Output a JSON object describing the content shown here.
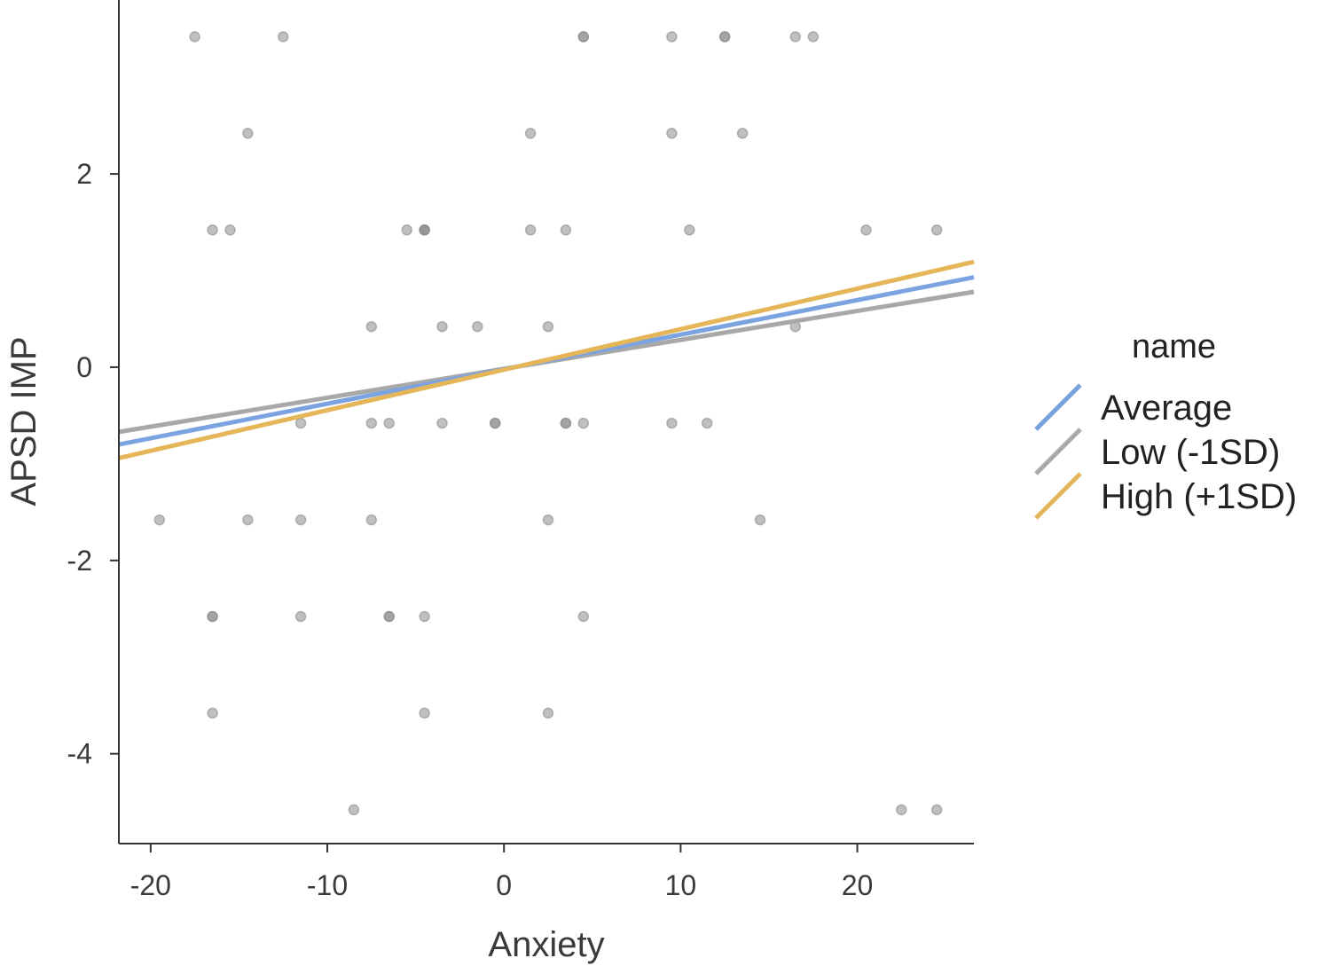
{
  "chart_data": {
    "type": "scatter",
    "xlabel": "Anxiety",
    "ylabel": "APSD IMP",
    "xlim": [
      -21.8,
      26.6
    ],
    "ylim": [
      -4.93,
      3.8
    ],
    "x_ticks": [
      -20,
      -10,
      0,
      10,
      20
    ],
    "y_ticks": [
      -4,
      -2,
      0,
      2
    ],
    "grid": false,
    "legend": {
      "title": "name",
      "position": "right",
      "entries": [
        {
          "name": "Average",
          "color": "#7ba3e0"
        },
        {
          "name": "Low (-1SD)",
          "color": "#a8a8a8"
        },
        {
          "name": "High (+1SD)",
          "color": "#e5b658"
        }
      ]
    },
    "points_color": "#8c8c8c",
    "points": [
      {
        "x": -17.5,
        "y": 3.42
      },
      {
        "x": -12.5,
        "y": 3.42
      },
      {
        "x": 4.5,
        "y": 3.42
      },
      {
        "x": 4.5,
        "y": 3.42
      },
      {
        "x": 9.5,
        "y": 3.42
      },
      {
        "x": 12.5,
        "y": 3.42
      },
      {
        "x": 12.5,
        "y": 3.42
      },
      {
        "x": 16.5,
        "y": 3.42
      },
      {
        "x": 17.5,
        "y": 3.42
      },
      {
        "x": -14.5,
        "y": 2.42
      },
      {
        "x": 1.5,
        "y": 2.42
      },
      {
        "x": 9.5,
        "y": 2.42
      },
      {
        "x": 13.5,
        "y": 2.42
      },
      {
        "x": -16.5,
        "y": 1.42
      },
      {
        "x": -15.5,
        "y": 1.42
      },
      {
        "x": -5.5,
        "y": 1.42
      },
      {
        "x": -4.5,
        "y": 1.42
      },
      {
        "x": -4.5,
        "y": 1.42
      },
      {
        "x": -4.5,
        "y": 1.42
      },
      {
        "x": 1.5,
        "y": 1.42
      },
      {
        "x": 3.5,
        "y": 1.42
      },
      {
        "x": 10.5,
        "y": 1.42
      },
      {
        "x": 20.5,
        "y": 1.42
      },
      {
        "x": 24.5,
        "y": 1.42
      },
      {
        "x": -7.5,
        "y": 0.42
      },
      {
        "x": -3.5,
        "y": 0.42
      },
      {
        "x": -1.5,
        "y": 0.42
      },
      {
        "x": 2.5,
        "y": 0.42
      },
      {
        "x": 16.5,
        "y": 0.42
      },
      {
        "x": -11.5,
        "y": -0.58
      },
      {
        "x": -7.5,
        "y": -0.58
      },
      {
        "x": -6.5,
        "y": -0.58
      },
      {
        "x": -3.5,
        "y": -0.58
      },
      {
        "x": -0.5,
        "y": -0.58
      },
      {
        "x": -0.5,
        "y": -0.58
      },
      {
        "x": 3.5,
        "y": -0.58
      },
      {
        "x": 3.5,
        "y": -0.58
      },
      {
        "x": 4.5,
        "y": -0.58
      },
      {
        "x": 9.5,
        "y": -0.58
      },
      {
        "x": 11.5,
        "y": -0.58
      },
      {
        "x": -19.5,
        "y": -1.58
      },
      {
        "x": -14.5,
        "y": -1.58
      },
      {
        "x": -11.5,
        "y": -1.58
      },
      {
        "x": -7.5,
        "y": -1.58
      },
      {
        "x": 2.5,
        "y": -1.58
      },
      {
        "x": 14.5,
        "y": -1.58
      },
      {
        "x": -16.5,
        "y": -2.58
      },
      {
        "x": -16.5,
        "y": -2.58
      },
      {
        "x": -11.5,
        "y": -2.58
      },
      {
        "x": -6.5,
        "y": -2.58
      },
      {
        "x": -6.5,
        "y": -2.58
      },
      {
        "x": -4.5,
        "y": -2.58
      },
      {
        "x": 4.5,
        "y": -2.58
      },
      {
        "x": -16.5,
        "y": -3.58
      },
      {
        "x": -4.5,
        "y": -3.58
      },
      {
        "x": 2.5,
        "y": -3.58
      },
      {
        "x": -8.5,
        "y": -4.58
      },
      {
        "x": 22.5,
        "y": -4.58
      },
      {
        "x": 24.5,
        "y": -4.58
      }
    ],
    "series": [
      {
        "name": "Low (-1SD)",
        "type": "line",
        "color": "#a8a8a8",
        "x": [
          -21.8,
          26.6
        ],
        "y": [
          -0.67,
          0.78
        ]
      },
      {
        "name": "Average",
        "type": "line",
        "color": "#7ba3e0",
        "x": [
          -21.8,
          26.6
        ],
        "y": [
          -0.8,
          0.93
        ]
      },
      {
        "name": "High (+1SD)",
        "type": "line",
        "color": "#e5b658",
        "x": [
          -21.8,
          26.6
        ],
        "y": [
          -0.94,
          1.09
        ]
      }
    ]
  }
}
